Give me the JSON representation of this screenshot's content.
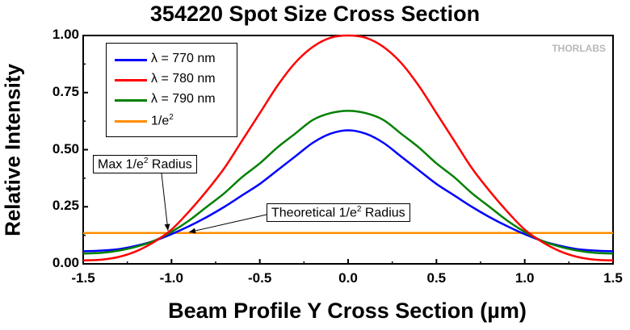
{
  "chart_data": {
    "type": "line",
    "title": "354220 Spot Size Cross Section",
    "xlabel": "Beam Profile Y Cross Section (µm)",
    "ylabel": "Relative Intensity",
    "xlim": [
      -1.5,
      1.5
    ],
    "ylim": [
      0,
      1.0
    ],
    "xticks": [
      "-1.5",
      "-1.0",
      "-0.5",
      "0.0",
      "0.5",
      "1.0",
      "1.5"
    ],
    "yticks": [
      "0.00",
      "0.25",
      "0.50",
      "0.75",
      "1.00"
    ],
    "x": [
      -1.5,
      -1.4,
      -1.3,
      -1.2,
      -1.1,
      -1.0,
      -0.9,
      -0.8,
      -0.7,
      -0.6,
      -0.5,
      -0.4,
      -0.3,
      -0.2,
      -0.1,
      0.0,
      0.1,
      0.2,
      0.3,
      0.4,
      0.5,
      0.6,
      0.7,
      0.8,
      0.9,
      1.0,
      1.1,
      1.2,
      1.3,
      1.4,
      1.5
    ],
    "series": [
      {
        "name": "λ = 770 nm",
        "color": "#0000ff",
        "values": [
          0.055,
          0.058,
          0.064,
          0.079,
          0.1,
          0.13,
          0.165,
          0.205,
          0.25,
          0.3,
          0.35,
          0.41,
          0.47,
          0.53,
          0.57,
          0.585,
          0.57,
          0.53,
          0.47,
          0.41,
          0.35,
          0.3,
          0.25,
          0.205,
          0.165,
          0.13,
          0.1,
          0.079,
          0.064,
          0.058,
          0.055
        ]
      },
      {
        "name": "λ = 780 nm",
        "color": "#ff0000",
        "values": [
          0.015,
          0.018,
          0.03,
          0.055,
          0.095,
          0.15,
          0.23,
          0.32,
          0.42,
          0.54,
          0.66,
          0.78,
          0.88,
          0.95,
          0.99,
          1.0,
          0.99,
          0.95,
          0.88,
          0.78,
          0.66,
          0.54,
          0.42,
          0.32,
          0.23,
          0.15,
          0.095,
          0.055,
          0.03,
          0.018,
          0.015
        ]
      },
      {
        "name": "λ = 790 nm",
        "color": "#008000",
        "values": [
          0.045,
          0.048,
          0.058,
          0.075,
          0.1,
          0.14,
          0.19,
          0.25,
          0.31,
          0.38,
          0.44,
          0.51,
          0.57,
          0.63,
          0.66,
          0.67,
          0.66,
          0.63,
          0.57,
          0.51,
          0.44,
          0.38,
          0.31,
          0.25,
          0.19,
          0.14,
          0.1,
          0.075,
          0.058,
          0.048,
          0.045
        ]
      },
      {
        "name": "1/e²",
        "color": "#ff8c00",
        "values": [
          0.135,
          0.135,
          0.135,
          0.135,
          0.135,
          0.135,
          0.135,
          0.135,
          0.135,
          0.135,
          0.135,
          0.135,
          0.135,
          0.135,
          0.135,
          0.135,
          0.135,
          0.135,
          0.135,
          0.135,
          0.135,
          0.135,
          0.135,
          0.135,
          0.135,
          0.135,
          0.135,
          0.135,
          0.135,
          0.135,
          0.135
        ]
      }
    ],
    "legend": {
      "placement": "top-left",
      "entries": [
        {
          "prefix": "λ",
          "label": "= 770 nm",
          "color": "#0000ff"
        },
        {
          "prefix": "λ",
          "label": "= 780 nm",
          "color": "#ff0000"
        },
        {
          "prefix": "λ",
          "label": "= 790 nm",
          "color": "#008000"
        },
        {
          "prefix": "1/e",
          "sup": "2",
          "label": "",
          "color": "#ff8c00"
        }
      ]
    },
    "annotations": [
      {
        "text_before": "Max 1/e",
        "sup": "2",
        "text_after": " Radius",
        "points_to": [
          -1.02,
          0.135
        ]
      },
      {
        "text_before": "Theoretical 1/e",
        "sup": "2",
        "text_after": " Radius",
        "points_to": [
          -0.91,
          0.135
        ]
      }
    ],
    "watermark": "THORLABS",
    "grid": false
  }
}
